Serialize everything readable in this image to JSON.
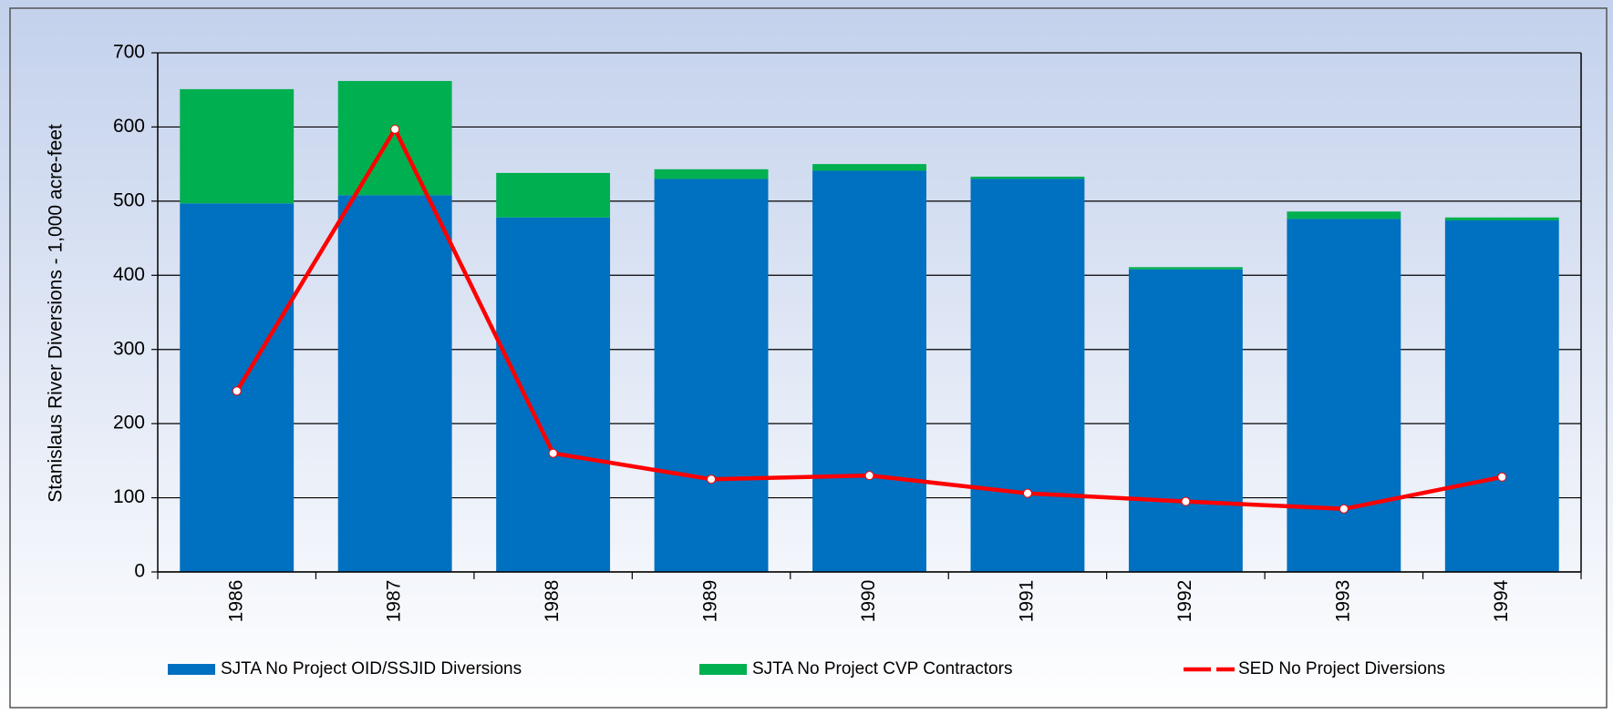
{
  "chart_data": {
    "type": "bar",
    "y_label": "Stanislaus River Diversions - 1,000 acre-feet",
    "categories": [
      "1986",
      "1987",
      "1988",
      "1989",
      "1990",
      "1991",
      "1992",
      "1993",
      "1994"
    ],
    "series": [
      {
        "name": "SJTA No Project OID/SSJID Diversions",
        "color": "#0070c0",
        "type": "bar",
        "values": [
          497,
          508,
          478,
          530,
          541,
          530,
          408,
          476,
          474
        ]
      },
      {
        "name": "SJTA No Project CVP Contractors",
        "color": "#00b050",
        "type": "bar",
        "values": [
          154,
          154,
          60,
          13,
          9,
          3,
          3,
          10,
          4
        ]
      },
      {
        "name": "SED No Project Diversions",
        "color": "#ff0000",
        "type": "line",
        "values": [
          244,
          597,
          160,
          125,
          130,
          106,
          95,
          85,
          128
        ]
      }
    ],
    "ylim": [
      0,
      700
    ],
    "yticks": [
      0,
      100,
      200,
      300,
      400,
      500,
      600,
      700
    ],
    "grid": true,
    "stacked": true
  }
}
